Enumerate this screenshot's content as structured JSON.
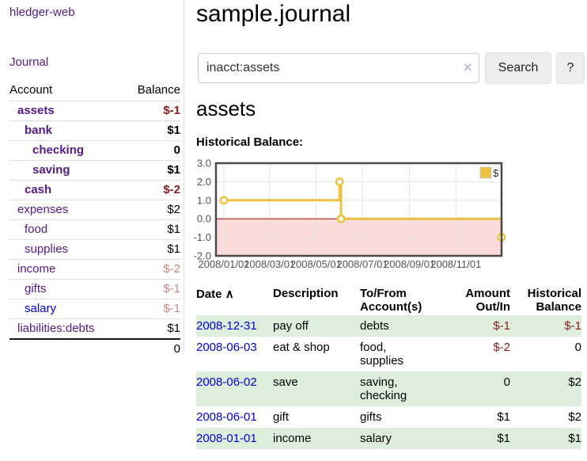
{
  "brand": "hledger-web",
  "nav": {
    "journal": "Journal"
  },
  "sidebar": {
    "columns": {
      "account": "Account",
      "balance": "Balance"
    },
    "accounts": [
      {
        "name": "assets",
        "depth": 1,
        "balance": "$-1",
        "bold": true,
        "balance_class": "neg-strong",
        "link_color": "purple"
      },
      {
        "name": "bank",
        "depth": 2,
        "balance": "$1",
        "bold": true,
        "balance_class": "",
        "link_color": "purple"
      },
      {
        "name": "checking",
        "depth": 3,
        "balance": "0",
        "bold": true,
        "balance_class": "",
        "link_color": "purple"
      },
      {
        "name": "saving",
        "depth": 3,
        "balance": "$1",
        "bold": true,
        "balance_class": "",
        "link_color": "purple"
      },
      {
        "name": "cash",
        "depth": 2,
        "balance": "$-2",
        "bold": true,
        "balance_class": "neg-strong",
        "link_color": "purple"
      },
      {
        "name": "expenses",
        "depth": 1,
        "balance": "$2",
        "bold": false,
        "balance_class": "",
        "link_color": "purple"
      },
      {
        "name": "food",
        "depth": 2,
        "balance": "$1",
        "bold": false,
        "balance_class": "",
        "link_color": "purple"
      },
      {
        "name": "supplies",
        "depth": 2,
        "balance": "$1",
        "bold": false,
        "balance_class": "",
        "link_color": "purple"
      },
      {
        "name": "income",
        "depth": 1,
        "balance": "$-2",
        "bold": false,
        "balance_class": "neg-muted",
        "link_color": "purple"
      },
      {
        "name": "gifts",
        "depth": 2,
        "balance": "$-1",
        "bold": false,
        "balance_class": "neg-muted",
        "link_color": "purple"
      },
      {
        "name": "salary",
        "depth": 2,
        "balance": "$-1",
        "bold": false,
        "balance_class": "neg-muted",
        "link_color": "blue"
      },
      {
        "name": "liabilities:debts",
        "depth": 1,
        "balance": "$1",
        "bold": false,
        "balance_class": "",
        "link_color": "purple"
      }
    ],
    "total": "0"
  },
  "main": {
    "title": "sample.journal",
    "search": {
      "value": "inacct:assets",
      "clear_icon": "×",
      "search_button": "Search",
      "help_button": "?"
    },
    "account_title": "assets",
    "chart_label": "Historical Balance:"
  },
  "chart_data": {
    "type": "line",
    "step": true,
    "title": "Historical Balance:",
    "series": [
      {
        "name": "$",
        "points": [
          [
            "2008-01-01",
            1
          ],
          [
            "2008-06-01",
            2
          ],
          [
            "2008-06-03",
            0
          ],
          [
            "2008-12-31",
            -1
          ]
        ]
      }
    ],
    "xlim": [
      "2008-01-01",
      "2008-12-31"
    ],
    "ylim": [
      -2.0,
      3.0
    ],
    "y_ticks": [
      3.0,
      2.0,
      1.0,
      0.0,
      -1.0,
      -2.0
    ],
    "x_ticks": [
      {
        "label": "2008/01/01",
        "date": "2008-01-01"
      },
      {
        "label": "2008/03/01",
        "date": "2008-03-01"
      },
      {
        "label": "2008/05/01",
        "date": "2008-05-01"
      },
      {
        "label": "2008/07/01",
        "date": "2008-07-01"
      },
      {
        "label": "2008/09/01",
        "date": "2008-09-01"
      },
      {
        "label": "2008/11/01",
        "date": "2008-11-01"
      }
    ],
    "grid": true,
    "legend_position": "top-right",
    "negative_region_below": 0,
    "colors": {
      "line": "#edc240",
      "marker_fill": "#ffffff",
      "negative_fill": "#fbdada",
      "zero_line": "#aa0000",
      "frame": "#4a4a4a",
      "grid": "#e5e5e5",
      "tick_text": "#545454"
    }
  },
  "register": {
    "sort_icon": "∧",
    "headers": {
      "date": "Date",
      "description": "Description",
      "tofrom": "To/From Account(s)",
      "amount": "Amount Out/In",
      "balance": "Historical Balance"
    },
    "rows": [
      {
        "date": "2008-12-31",
        "description": "pay off",
        "accounts": "debts",
        "amount": "$-1",
        "amount_negative": true,
        "balance": "$-1",
        "balance_negative": true,
        "stripe": true
      },
      {
        "date": "2008-06-03",
        "description": "eat & shop",
        "accounts": "food, supplies",
        "amount": "$-2",
        "amount_negative": true,
        "balance": "0",
        "balance_negative": false,
        "stripe": false
      },
      {
        "date": "2008-06-02",
        "description": "save",
        "accounts": "saving, checking",
        "amount": "0",
        "amount_negative": false,
        "balance": "$2",
        "balance_negative": false,
        "stripe": true
      },
      {
        "date": "2008-06-01",
        "description": "gift",
        "accounts": "gifts",
        "amount": "$1",
        "amount_negative": false,
        "balance": "$2",
        "balance_negative": false,
        "stripe": false
      },
      {
        "date": "2008-01-01",
        "description": "income",
        "accounts": "salary",
        "amount": "$1",
        "amount_negative": false,
        "balance": "$1",
        "balance_negative": false,
        "stripe": true
      }
    ]
  },
  "colors": {
    "link_purple": "#551a8b",
    "link_blue": "#0000dd",
    "negative_strong": "#8b1a1a",
    "negative_muted": "#c98383",
    "row_stripe_green": "#ddeedd",
    "chart_line_gold": "#edc240"
  }
}
